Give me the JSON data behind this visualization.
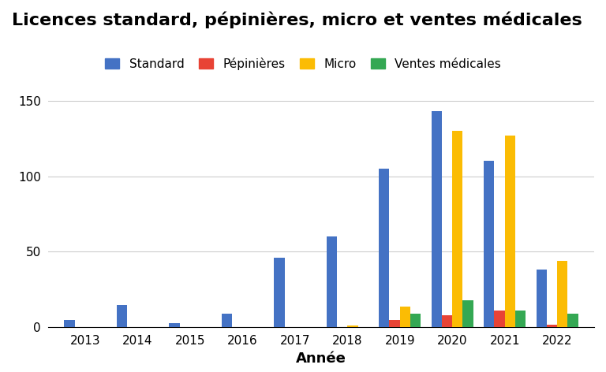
{
  "title": "Licences standard, pépinières, micro et ventes médicales",
  "xlabel": "Année",
  "ylabel": "",
  "years": [
    2013,
    2014,
    2015,
    2016,
    2017,
    2018,
    2019,
    2020,
    2021,
    2022
  ],
  "series": {
    "Standard": [
      5,
      15,
      3,
      9,
      46,
      60,
      105,
      143,
      110,
      38
    ],
    "Pépinières": [
      0,
      0,
      0,
      0,
      0,
      0,
      5,
      8,
      11,
      2
    ],
    "Micro": [
      0,
      0,
      0,
      0,
      0,
      1,
      14,
      130,
      127,
      44
    ],
    "Ventes médicales": [
      0,
      0,
      0,
      0,
      0,
      0,
      9,
      18,
      11,
      9
    ]
  },
  "colors": {
    "Standard": "#4472C4",
    "Pépinières": "#E84335",
    "Micro": "#FBBC04",
    "Ventes médicales": "#34A853"
  },
  "ylim": [
    0,
    160
  ],
  "yticks": [
    0,
    50,
    100,
    150
  ],
  "bar_width": 0.2,
  "background_color": "#ffffff",
  "grid_color": "#cccccc",
  "title_fontsize": 16,
  "legend_fontsize": 11,
  "axis_label_fontsize": 13
}
